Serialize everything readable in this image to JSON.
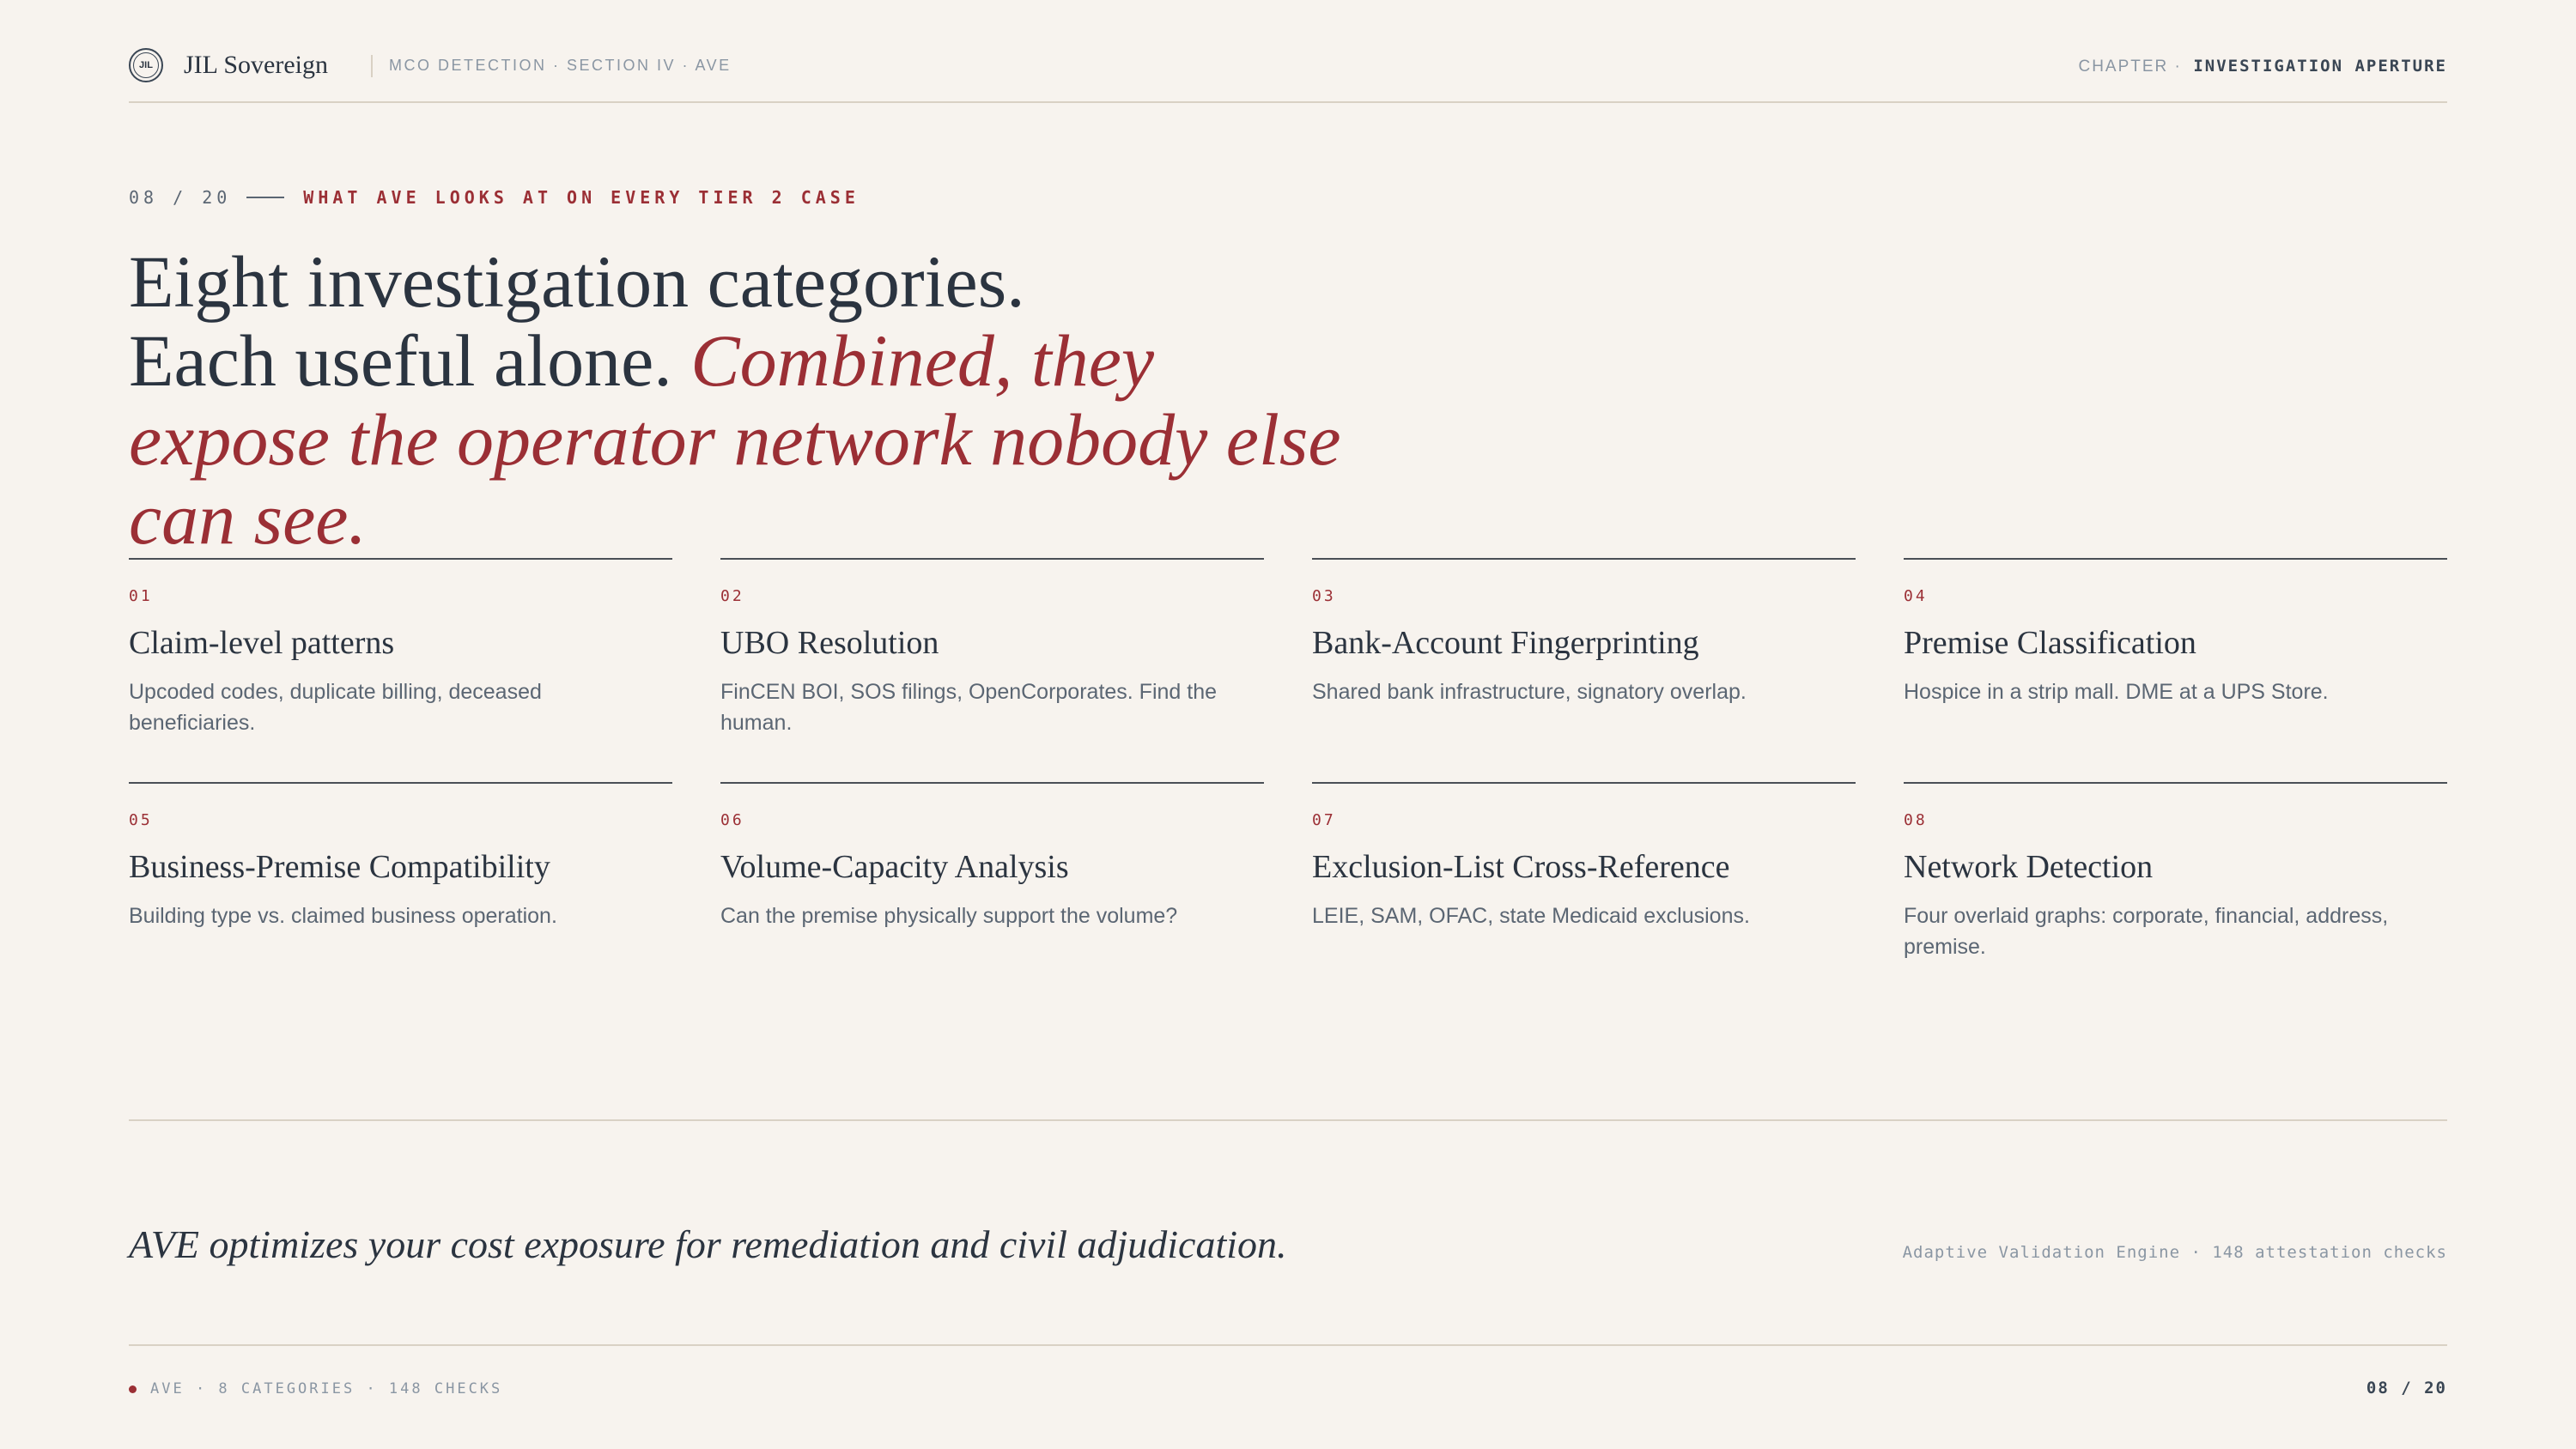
{
  "header": {
    "logo_text": "JIL",
    "brand": "JIL Sovereign",
    "section": "MCO DETECTION · SECTION IV · AVE",
    "chapter_label": "CHAPTER ·",
    "chapter_value": "INVESTIGATION APERTURE"
  },
  "eyebrow": {
    "page": "08 / 20",
    "text": "WHAT AVE LOOKS AT ON EVERY TIER 2 CASE"
  },
  "headline": {
    "line1": "Eight investigation categories.",
    "line2": "Each useful alone.",
    "emphasis": "Combined, they expose the operator network nobody else can see."
  },
  "categories": [
    {
      "num": "01",
      "title": "Claim-level patterns",
      "desc": "Upcoded codes, duplicate billing, deceased beneficiaries."
    },
    {
      "num": "02",
      "title": "UBO Resolution",
      "desc": "FinCEN BOI, SOS filings, OpenCorporates. Find the human."
    },
    {
      "num": "03",
      "title": "Bank-Account Fingerprinting",
      "desc": "Shared bank infrastructure, signatory overlap."
    },
    {
      "num": "04",
      "title": "Premise Classification",
      "desc": "Hospice in a strip mall. DME at a UPS Store."
    },
    {
      "num": "05",
      "title": "Business-Premise Compatibility",
      "desc": "Building type vs. claimed business operation."
    },
    {
      "num": "06",
      "title": "Volume-Capacity Analysis",
      "desc": "Can the premise physically support the volume?"
    },
    {
      "num": "07",
      "title": "Exclusion-List Cross-Reference",
      "desc": "LEIE, SAM, OFAC, state Medicaid exclusions."
    },
    {
      "num": "08",
      "title": "Network Detection",
      "desc": "Four overlaid graphs: corporate, financial, address, premise."
    }
  ],
  "tagline": "AVE optimizes your cost exposure for remediation and civil adjudication.",
  "engine_note": "Adaptive Validation Engine · 148 attestation checks",
  "footer": {
    "left": "AVE · 8 CATEGORIES · 148 CHECKS",
    "page": "08 / 20"
  },
  "colors": {
    "background": "#f7f3ee",
    "accent": "#9b2f35",
    "ink": "#2b3440",
    "muted": "#8a96a3"
  }
}
